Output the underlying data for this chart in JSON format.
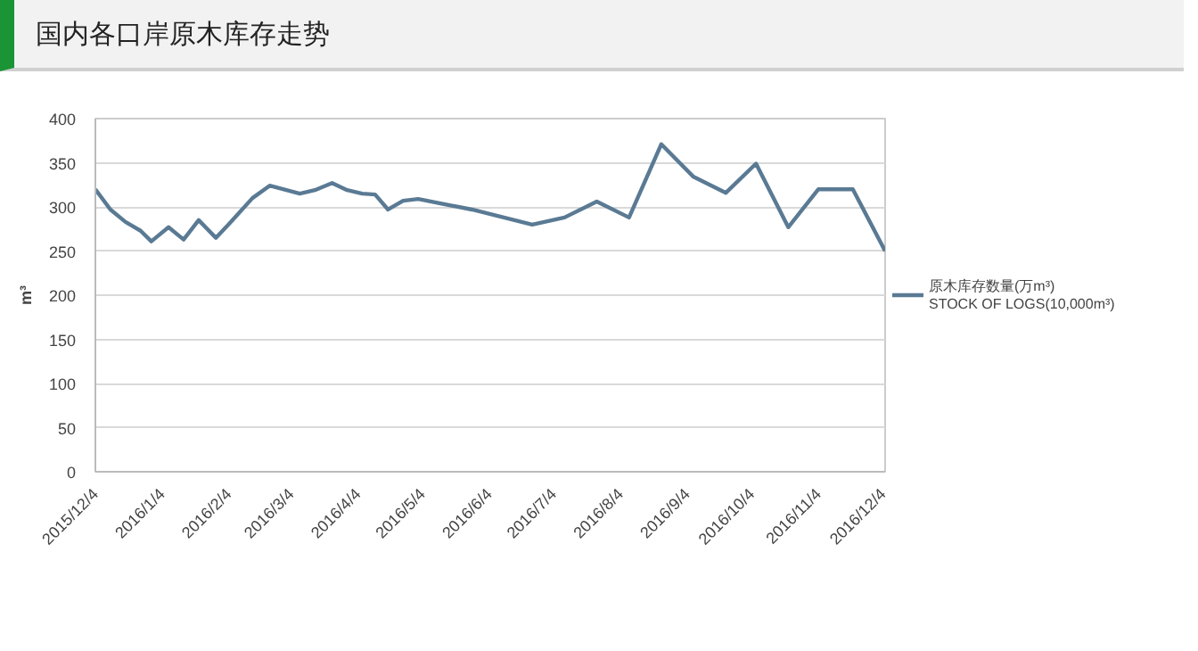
{
  "chart_data": {
    "type": "line",
    "title": "国内各口岸原木库存走势",
    "ylabel": "m³",
    "x": [
      "2015-12-04",
      "2015-12-11",
      "2015-12-18",
      "2015-12-25",
      "2015-12-30",
      "2016-01-07",
      "2016-01-14",
      "2016-01-21",
      "2016-01-29",
      "2016-02-05",
      "2016-02-15",
      "2016-02-23",
      "2016-03-08",
      "2016-03-15",
      "2016-03-23",
      "2016-03-30",
      "2016-04-06",
      "2016-04-12",
      "2016-04-18",
      "2016-04-25",
      "2016-05-02",
      "2016-05-27",
      "2016-06-24",
      "2016-07-09",
      "2016-07-24",
      "2016-08-08",
      "2016-08-23",
      "2016-09-07",
      "2016-09-22",
      "2016-10-06",
      "2016-10-21",
      "2016-11-04",
      "2016-11-20",
      "2016-12-05"
    ],
    "series": [
      {
        "name": "原木库存数量(万m³)\nSTOCK OF LOGS(10,000m³)",
        "color": "#5a7a94",
        "values": [
          320,
          297,
          283,
          273,
          261,
          277,
          263,
          285,
          265,
          283,
          310,
          324,
          315,
          319,
          327,
          319,
          315,
          314,
          297,
          307,
          309,
          297,
          280,
          288,
          306,
          288,
          371,
          334,
          316,
          349,
          277,
          320,
          320,
          250
        ]
      }
    ],
    "xlim": [
      "2015-12-04",
      "2016-12-05"
    ],
    "xticks": [
      {
        "value": "2015-12-04",
        "label": "2015/12/4"
      },
      {
        "value": "2016-01-04",
        "label": "2016/1/4"
      },
      {
        "value": "2016-02-04",
        "label": "2016/2/4"
      },
      {
        "value": "2016-03-04",
        "label": "2016/3/4"
      },
      {
        "value": "2016-04-04",
        "label": "2016/4/4"
      },
      {
        "value": "2016-05-04",
        "label": "2016/5/4"
      },
      {
        "value": "2016-06-04",
        "label": "2016/6/4"
      },
      {
        "value": "2016-07-04",
        "label": "2016/7/4"
      },
      {
        "value": "2016-08-04",
        "label": "2016/8/4"
      },
      {
        "value": "2016-09-04",
        "label": "2016/9/4"
      },
      {
        "value": "2016-10-04",
        "label": "2016/10/4"
      },
      {
        "value": "2016-11-04",
        "label": "2016/11/4"
      },
      {
        "value": "2016-12-04",
        "label": "2016/12/4"
      }
    ],
    "ylim": [
      0,
      400
    ],
    "yticks": [
      0,
      50,
      100,
      150,
      200,
      250,
      300,
      350,
      400
    ],
    "grid": "y",
    "legend": "right",
    "line_style": "solid",
    "marker": "none"
  }
}
